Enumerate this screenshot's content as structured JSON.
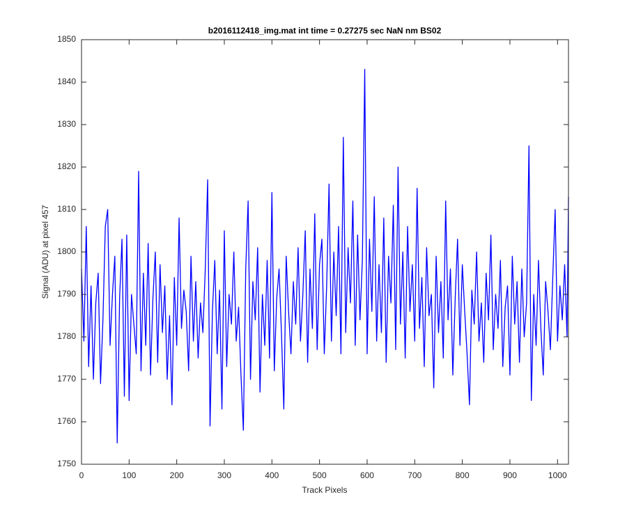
{
  "chart_data": {
    "type": "line",
    "title": "b2016112418_img.mat int time = 0.27275 sec  NaN nm BS02",
    "x_label": "Track Pixels",
    "y_label": "Signal (ADU) at pixel 457",
    "xlim": [
      0,
      1023
    ],
    "ylim": [
      1750,
      1850
    ],
    "xticks": [
      0,
      100,
      200,
      300,
      400,
      500,
      600,
      700,
      800,
      900,
      1000
    ],
    "yticks": [
      1750,
      1760,
      1770,
      1780,
      1790,
      1800,
      1810,
      1820,
      1830,
      1840,
      1850
    ],
    "grid": false,
    "series": [
      {
        "color": "#0000ff",
        "x": [
          0,
          5,
          10,
          15,
          20,
          25,
          30,
          35,
          40,
          45,
          50,
          55,
          60,
          65,
          70,
          75,
          80,
          85,
          90,
          95,
          100,
          105,
          110,
          115,
          120,
          125,
          130,
          135,
          140,
          145,
          150,
          155,
          160,
          165,
          170,
          175,
          180,
          185,
          190,
          195,
          200,
          205,
          210,
          215,
          220,
          225,
          230,
          235,
          240,
          245,
          250,
          255,
          260,
          265,
          270,
          275,
          280,
          285,
          290,
          295,
          300,
          305,
          310,
          315,
          320,
          325,
          330,
          335,
          340,
          345,
          350,
          355,
          360,
          365,
          370,
          375,
          380,
          385,
          390,
          395,
          400,
          405,
          410,
          415,
          420,
          425,
          430,
          435,
          440,
          445,
          450,
          455,
          460,
          465,
          470,
          475,
          480,
          485,
          490,
          495,
          500,
          505,
          510,
          515,
          520,
          525,
          530,
          535,
          540,
          545,
          550,
          555,
          560,
          565,
          570,
          575,
          580,
          585,
          590,
          595,
          600,
          605,
          610,
          615,
          620,
          625,
          630,
          635,
          640,
          645,
          650,
          655,
          660,
          665,
          670,
          675,
          680,
          685,
          690,
          695,
          700,
          705,
          710,
          715,
          720,
          725,
          730,
          735,
          740,
          745,
          750,
          755,
          760,
          765,
          770,
          775,
          780,
          785,
          790,
          795,
          800,
          805,
          810,
          815,
          820,
          825,
          830,
          835,
          840,
          845,
          850,
          855,
          860,
          865,
          870,
          875,
          880,
          885,
          890,
          895,
          900,
          905,
          910,
          915,
          920,
          925,
          930,
          935,
          940,
          945,
          950,
          955,
          960,
          965,
          970,
          975,
          980,
          985,
          990,
          995,
          1000,
          1005,
          1010,
          1015,
          1020,
          1023
        ],
        "values": [
          1796,
          1779,
          1806,
          1773,
          1792,
          1770,
          1788,
          1795,
          1769,
          1784,
          1806,
          1810,
          1778,
          1790,
          1799,
          1755,
          1789,
          1803,
          1766,
          1804,
          1765,
          1790,
          1783,
          1776,
          1819,
          1772,
          1795,
          1778,
          1802,
          1771,
          1789,
          1800,
          1774,
          1797,
          1781,
          1792,
          1770,
          1785,
          1764,
          1794,
          1778,
          1808,
          1782,
          1791,
          1786,
          1772,
          1799,
          1779,
          1793,
          1775,
          1788,
          1781,
          1796,
          1817,
          1759,
          1786,
          1798,
          1776,
          1791,
          1763,
          1805,
          1773,
          1790,
          1783,
          1800,
          1779,
          1787,
          1771,
          1758,
          1796,
          1812,
          1770,
          1793,
          1784,
          1801,
          1767,
          1790,
          1778,
          1798,
          1775,
          1814,
          1772,
          1789,
          1796,
          1781,
          1763,
          1799,
          1786,
          1776,
          1793,
          1783,
          1801,
          1779,
          1790,
          1805,
          1774,
          1796,
          1782,
          1809,
          1777,
          1797,
          1803,
          1776,
          1792,
          1816,
          1779,
          1800,
          1785,
          1806,
          1776,
          1827,
          1781,
          1801,
          1788,
          1812,
          1778,
          1804,
          1784,
          1798,
          1843,
          1776,
          1803,
          1786,
          1813,
          1779,
          1797,
          1781,
          1808,
          1774,
          1799,
          1788,
          1811,
          1777,
          1820,
          1783,
          1800,
          1775,
          1806,
          1786,
          1797,
          1779,
          1815,
          1782,
          1794,
          1773,
          1801,
          1785,
          1790,
          1768,
          1799,
          1781,
          1793,
          1775,
          1812,
          1784,
          1796,
          1771,
          1789,
          1803,
          1778,
          1797,
          1786,
          1776,
          1764,
          1791,
          1783,
          1800,
          1779,
          1788,
          1774,
          1795,
          1784,
          1804,
          1777,
          1790,
          1782,
          1798,
          1773,
          1787,
          1792,
          1771,
          1799,
          1783,
          1793,
          1774,
          1796,
          1780,
          1788,
          1825,
          1765,
          1790,
          1778,
          1798,
          1782,
          1771,
          1793,
          1786,
          1777,
          1794,
          1810,
          1779,
          1792,
          1784,
          1797,
          1780,
          1813
        ]
      }
    ]
  }
}
